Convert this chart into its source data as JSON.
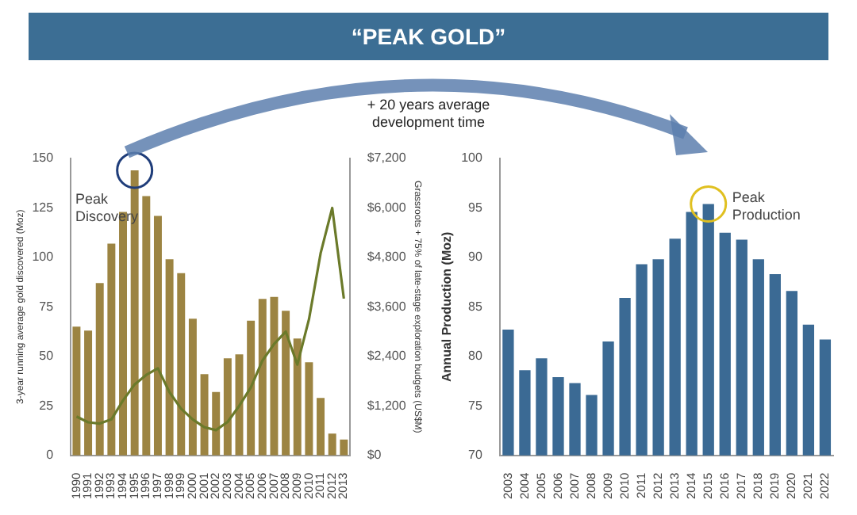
{
  "chart_data": [
    {
      "type": "other",
      "title": "“PEAK GOLD”",
      "annotations": [
        "+ 20 years average development time"
      ]
    },
    {
      "type": "bar",
      "ylabel": "3-year running average gold discovered (Moz)",
      "y2label": "Grassroots + 75% of late-stage exploration budgets (US$M)",
      "categories": [
        "1990",
        "1991",
        "1992",
        "1993",
        "1994",
        "1995",
        "1996",
        "1997",
        "1998",
        "1999",
        "2000",
        "2001",
        "2002",
        "2003",
        "2004",
        "2005",
        "2006",
        "2007",
        "2008",
        "2009",
        "2010",
        "2011",
        "2012",
        "2013"
      ],
      "series": [
        {
          "type": "bar",
          "color": "#9c8442",
          "values": [
            65,
            63,
            87,
            107,
            123,
            144,
            131,
            121,
            99,
            92,
            69,
            41,
            32,
            49,
            51,
            68,
            79,
            80,
            73,
            59,
            47,
            29,
            11,
            8
          ]
        },
        {
          "type": "line",
          "axis": "y2",
          "color": "#6b7a2a",
          "values": [
            940,
            800,
            770,
            870,
            1330,
            1720,
            1950,
            2110,
            1530,
            1130,
            870,
            680,
            610,
            810,
            1200,
            1650,
            2300,
            2700,
            3000,
            2200,
            3300,
            4900,
            6000,
            3800
          ]
        }
      ],
      "ylim": [
        0,
        150
      ],
      "yticks": [
        0,
        25,
        50,
        75,
        100,
        125,
        150
      ],
      "y2lim": [
        0,
        7200
      ],
      "y2ticks": [
        {
          "value": 0,
          "label": "$0"
        },
        {
          "value": 1200,
          "label": "$1,200"
        },
        {
          "value": 2400,
          "label": "$2,400"
        },
        {
          "value": 3600,
          "label": "$3,600"
        },
        {
          "value": 4800,
          "label": "$4,800"
        },
        {
          "value": 6000,
          "label": "$6,000"
        },
        {
          "value": 7200,
          "label": "$7,200"
        }
      ],
      "annotations": [
        {
          "text": "Peak Discovery",
          "x": "1995",
          "y": 144
        }
      ],
      "grid": false,
      "legend": false
    },
    {
      "type": "bar",
      "ylabel": "Annual Production (Moz)",
      "categories": [
        "2003",
        "2004",
        "2005",
        "2006",
        "2007",
        "2008",
        "2009",
        "2010",
        "2011",
        "2012",
        "2013",
        "2014",
        "2015",
        "2016",
        "2017",
        "2018",
        "2019",
        "2020",
        "2021",
        "2022"
      ],
      "series": [
        {
          "type": "bar",
          "color": "#3b6a94",
          "values": [
            82.7,
            78.6,
            79.8,
            77.9,
            77.3,
            76.1,
            81.5,
            85.9,
            89.3,
            89.8,
            91.9,
            94.6,
            95.4,
            92.5,
            91.8,
            89.8,
            88.3,
            86.6,
            83.2,
            81.7
          ]
        }
      ],
      "ylim": [
        70,
        100
      ],
      "yticks": [
        70,
        75,
        80,
        85,
        90,
        95,
        100
      ],
      "annotations": [
        {
          "text": "Peak Production",
          "x": "2015",
          "y": 95.4
        }
      ],
      "grid": false,
      "legend": false
    }
  ]
}
